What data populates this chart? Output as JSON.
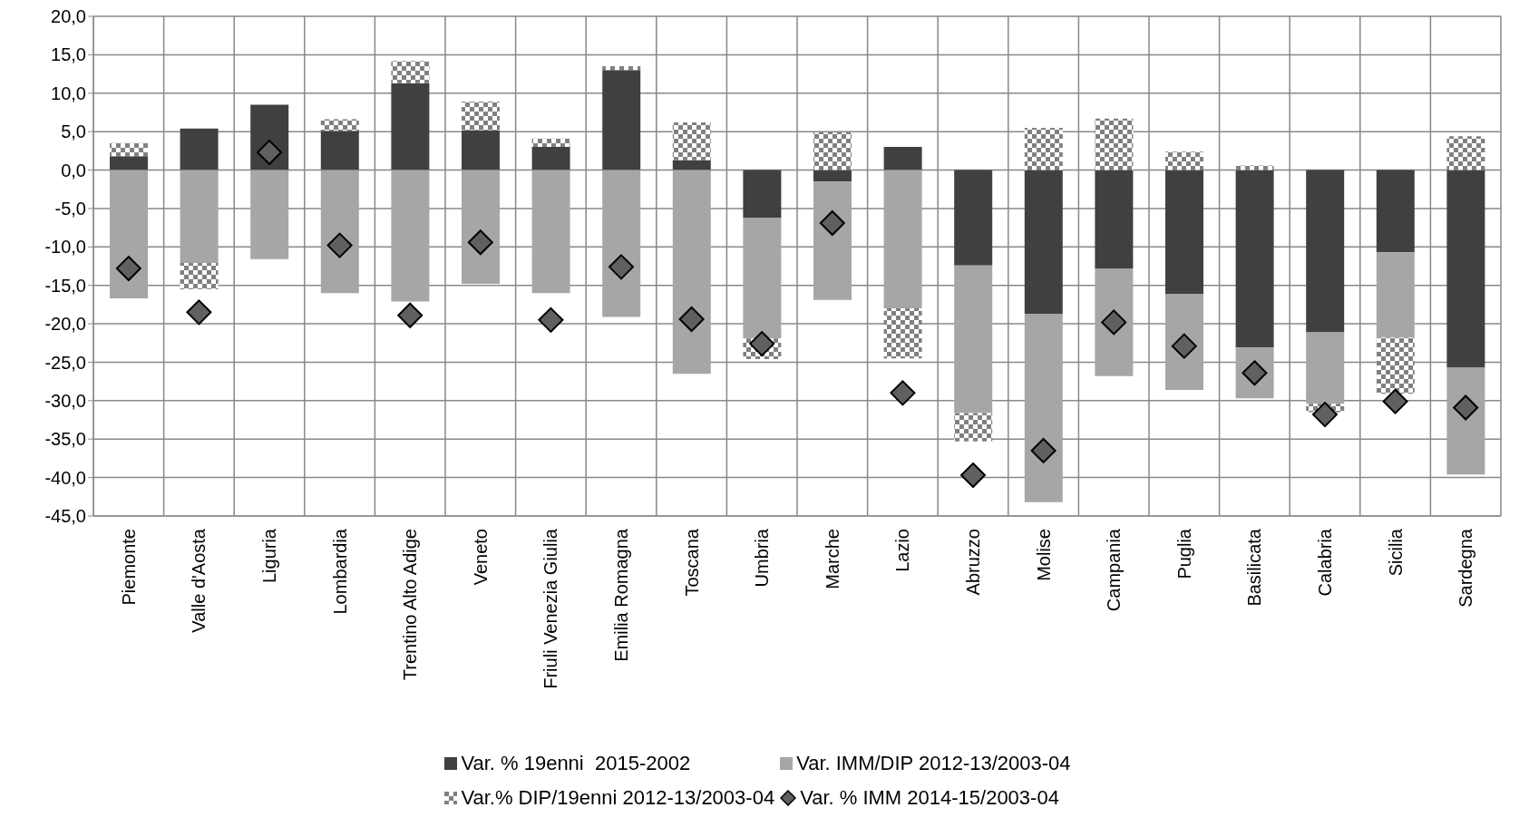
{
  "chart_data": {
    "type": "bar",
    "stacked": true,
    "categories": [
      "Piemonte",
      "Valle d'Aosta",
      "Liguria",
      "Lombardia",
      "Trentino Alto Adige",
      "Veneto",
      "Friuli Venezia Giulia",
      "Emilia Romagna",
      "Toscana",
      "Umbria",
      "Marche",
      "Lazio",
      "Abruzzo",
      "Molise",
      "Campania",
      "Puglia",
      "Basilicata",
      "Calabria",
      "Sicilia",
      "Sardegna"
    ],
    "series": [
      {
        "name": "Var. % 19enni  2015-2002",
        "color": "#404040",
        "values": [
          1.8,
          5.4,
          8.5,
          5.1,
          11.3,
          5.2,
          3.0,
          13.0,
          1.3,
          -6.2,
          -1.5,
          3.0,
          -12.4,
          -18.7,
          -12.8,
          -16.1,
          -23.1,
          -21.1,
          -10.7,
          -25.7
        ]
      },
      {
        "name": "Var. IMM/DIP 2012-13/2003-04",
        "color": "#a6a6a6",
        "values": [
          -16.7,
          -12.1,
          -11.6,
          -16.0,
          -17.1,
          -14.8,
          -16.0,
          -19.1,
          -26.5,
          -15.7,
          -15.4,
          -18.0,
          -19.2,
          -24.5,
          -14.0,
          -12.5,
          -6.6,
          -9.3,
          -11.1,
          -13.9
        ]
      },
      {
        "name": "Var.% DIP/19enni 2012-13/2003-04",
        "color": "#808080",
        "values": [
          1.7,
          -3.4,
          null,
          1.5,
          2.9,
          3.7,
          1.1,
          0.5,
          4.9,
          -2.7,
          4.9,
          -6.5,
          -3.7,
          5.5,
          6.7,
          2.4,
          0.6,
          -1.1,
          -7.3,
          4.4
        ]
      },
      {
        "name": "Var. % IMM 2014-15/2003-04",
        "type": "scatter",
        "color": "#606060",
        "values": [
          -12.8,
          -18.5,
          2.3,
          -9.8,
          -18.9,
          -9.4,
          -19.5,
          -12.6,
          -19.4,
          -22.6,
          -6.9,
          -29.0,
          -39.7,
          -36.5,
          -19.8,
          -22.9,
          -26.4,
          -31.8,
          -30.1,
          -30.9
        ]
      }
    ],
    "marker": "diamond",
    "ylim": [
      -45,
      20
    ],
    "yticks": [
      {
        "value": 20,
        "label": "20,0"
      },
      {
        "value": 15,
        "label": "15,0"
      },
      {
        "value": 10,
        "label": "10,0"
      },
      {
        "value": 5,
        "label": "5,0"
      },
      {
        "value": 0,
        "label": "0,0"
      },
      {
        "value": -5,
        "label": "-5,0"
      },
      {
        "value": -10,
        "label": "-10,0"
      },
      {
        "value": -15,
        "label": "-15,0"
      },
      {
        "value": -20,
        "label": "-20,0"
      },
      {
        "value": -25,
        "label": "-25,0"
      },
      {
        "value": -30,
        "label": "-30,0"
      },
      {
        "value": -35,
        "label": "-35,0"
      },
      {
        "value": -40,
        "label": "-40,0"
      },
      {
        "value": -45,
        "label": "-45,0"
      }
    ],
    "grid": true,
    "legend": "bottom"
  }
}
